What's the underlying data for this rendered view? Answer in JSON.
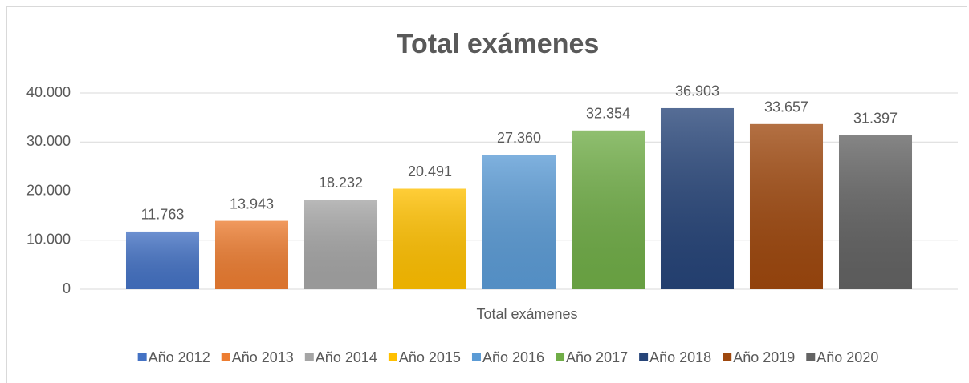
{
  "chart_data": {
    "type": "bar",
    "title": "Total exámenes",
    "categories": [
      "Total exámenes"
    ],
    "series": [
      {
        "name": "Año 2012",
        "color": "#4472c4",
        "values": [
          11763
        ],
        "value_labels": [
          "11.763"
        ]
      },
      {
        "name": "Año 2013",
        "color": "#ed7d31",
        "values": [
          13943
        ],
        "value_labels": [
          "13.943"
        ]
      },
      {
        "name": "Año 2014",
        "color": "#a5a5a5",
        "values": [
          18232
        ],
        "value_labels": [
          "18.232"
        ]
      },
      {
        "name": "Año 2015",
        "color": "#ffc000",
        "values": [
          20491
        ],
        "value_labels": [
          "20.491"
        ]
      },
      {
        "name": "Año 2016",
        "color": "#5b9bd5",
        "values": [
          27360
        ],
        "value_labels": [
          "27.360"
        ]
      },
      {
        "name": "Año 2017",
        "color": "#70ad47",
        "values": [
          32354
        ],
        "value_labels": [
          "32.354"
        ]
      },
      {
        "name": "Año 2018",
        "color": "#264478",
        "values": [
          36903
        ],
        "value_labels": [
          "36.903"
        ]
      },
      {
        "name": "Año 2019",
        "color": "#9e480e",
        "values": [
          33657
        ],
        "value_labels": [
          "33.657"
        ]
      },
      {
        "name": "Año 2020",
        "color": "#636363",
        "values": [
          31397
        ],
        "value_labels": [
          "31.397"
        ]
      }
    ],
    "ylim": [
      0,
      40000
    ],
    "yticks": [
      0,
      {
        "value": 10000,
        "label": "10.000"
      },
      {
        "value": 20000,
        "label": "20.000"
      },
      {
        "value": 30000,
        "label": "30.000"
      },
      {
        "value": 40000,
        "label": "40.000"
      }
    ],
    "grid": true,
    "legend": "bottom"
  }
}
